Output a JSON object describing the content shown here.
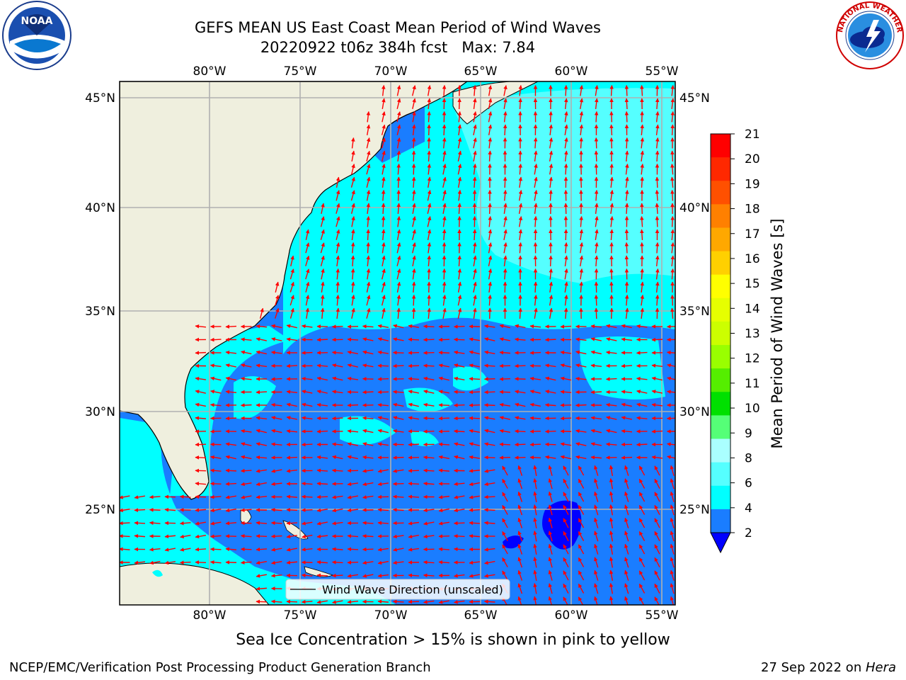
{
  "header": {
    "title_line1": "GEFS MEAN US East Coast Mean Period of Wind Waves",
    "title_line2": "20220922 t06z 384h fcst   Max: 7.84"
  },
  "logos": {
    "left": {
      "text": "NOAA",
      "icon": "noaa-seal-icon"
    },
    "right": {
      "text": "NATIONAL WEATHER SERVICE",
      "icon": "nws-seal-icon"
    }
  },
  "map": {
    "lon_labels": [
      "80°W",
      "75°W",
      "70°W",
      "65°W",
      "60°W",
      "55°W"
    ],
    "lat_labels": [
      "45°N",
      "40°N",
      "35°N",
      "30°N",
      "25°N"
    ],
    "legend_label": "Wind Wave Direction (unscaled)",
    "colors": {
      "land": "#efefde",
      "ocean_high": "#00ffff",
      "ocean_mid": "#55ffff",
      "ocean_low": "#1a7dff",
      "ocean_min": "#0000ff",
      "arrows": "#ff0000",
      "grid": "#b0b0b0"
    }
  },
  "colorbar": {
    "label": "Mean Period of Wind Waves [s]",
    "ticks": [
      "21",
      "20",
      "19",
      "18",
      "17",
      "16",
      "15",
      "14",
      "13",
      "12",
      "11",
      "10",
      "9",
      "8",
      "6",
      "4",
      "2"
    ],
    "colors": [
      "#ff0000",
      "#ff2800",
      "#ff5000",
      "#ff8000",
      "#ffa800",
      "#ffd000",
      "#ffff00",
      "#e6ff00",
      "#ccff00",
      "#99ff00",
      "#55ee00",
      "#00e000",
      "#55ff77",
      "#aaffff",
      "#55ffff",
      "#00ffff",
      "#1a7dff"
    ],
    "extend_color": "#0000ff"
  },
  "footer": {
    "note": "Sea Ice Concentration > 15% is shown in pink to yellow",
    "left": "NCEP/EMC/Verification Post Processing Product Generation Branch",
    "date": "27 Sep 2022 on ",
    "machine": "Hera"
  }
}
